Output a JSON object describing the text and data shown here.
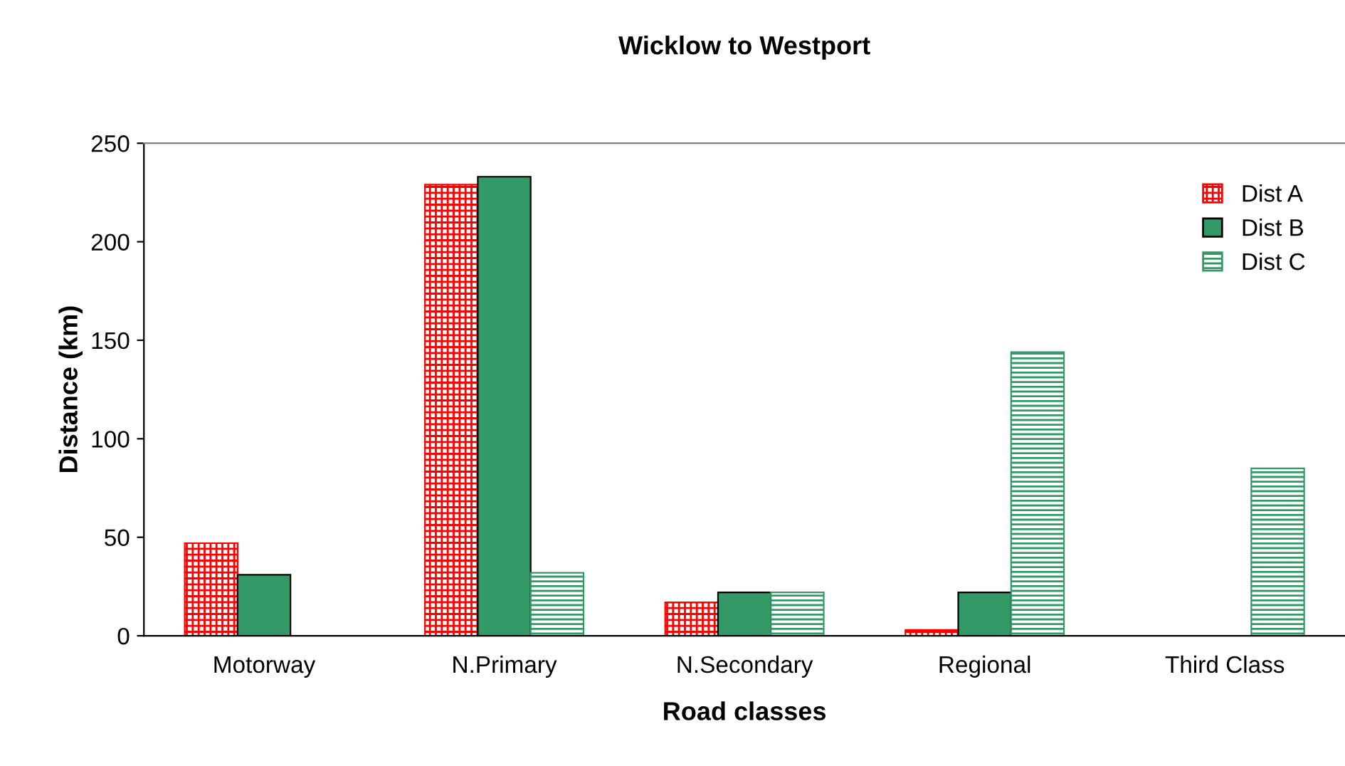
{
  "chart_data": {
    "type": "bar",
    "title": "Wicklow to Westport",
    "xlabel": "Road classes",
    "ylabel": "Distance (km)",
    "categories": [
      "Motorway",
      "N.Primary",
      "N.Secondary",
      "Regional",
      "Third Class"
    ],
    "series": [
      {
        "name": "Dist A",
        "color": "#ff0000",
        "values": [
          47,
          229,
          17,
          3,
          null
        ]
      },
      {
        "name": "Dist B",
        "color": "#339966",
        "values": [
          31,
          233,
          22,
          22,
          null
        ]
      },
      {
        "name": "Dist C",
        "color": "#339966",
        "values": [
          null,
          32,
          22,
          144,
          85
        ]
      }
    ],
    "ylim": [
      0,
      250
    ],
    "yticks": [
      0,
      50,
      100,
      150,
      200,
      250
    ],
    "grid": false,
    "legend": "top right"
  }
}
